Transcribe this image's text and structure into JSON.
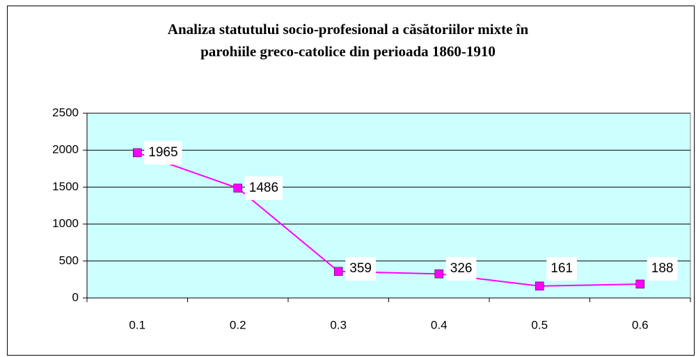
{
  "chart_data": {
    "type": "line",
    "title": [
      "Analiza statutului socio-profesional a căsătoriilor mixte în",
      "parohiile greco-catolice din perioada 1860-1910"
    ],
    "categories": [
      "0.1",
      "0.2",
      "0.3",
      "0.4",
      "0.5",
      "0.6"
    ],
    "values": [
      1965,
      1486,
      359,
      326,
      161,
      188
    ],
    "color": "#ff00ff",
    "plot_background": "#ccffff",
    "ylim": [
      0,
      2500
    ],
    "yticks": [
      0,
      500,
      1000,
      1500,
      2000,
      2500
    ],
    "grid": true,
    "data_labels": true
  }
}
